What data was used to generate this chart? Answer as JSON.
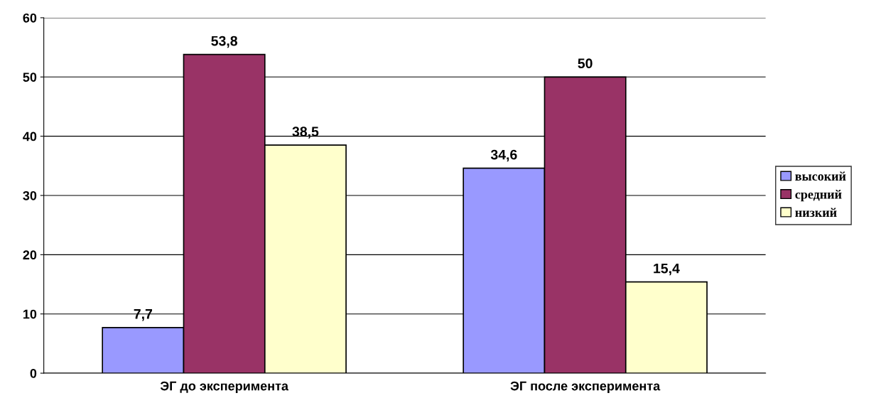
{
  "chart_data": {
    "type": "bar",
    "categories": [
      "ЭГ до эксперимента",
      "ЭГ после эксперимента"
    ],
    "series": [
      {
        "name": "высокий",
        "color": "#9999ff",
        "values": [
          7.7,
          34.6
        ],
        "value_labels": [
          "7,7",
          "34,6"
        ]
      },
      {
        "name": "средний",
        "color": "#993366",
        "values": [
          53.8,
          50
        ],
        "value_labels": [
          "53,8",
          "50"
        ]
      },
      {
        "name": "низкий",
        "color": "#ffffcc",
        "values": [
          38.5,
          15.4
        ],
        "value_labels": [
          "38,5",
          "15,4"
        ]
      }
    ],
    "ylim": [
      0,
      60
    ],
    "yticks": [
      0,
      10,
      20,
      30,
      40,
      50,
      60
    ],
    "grid": "y",
    "legend": "right"
  }
}
